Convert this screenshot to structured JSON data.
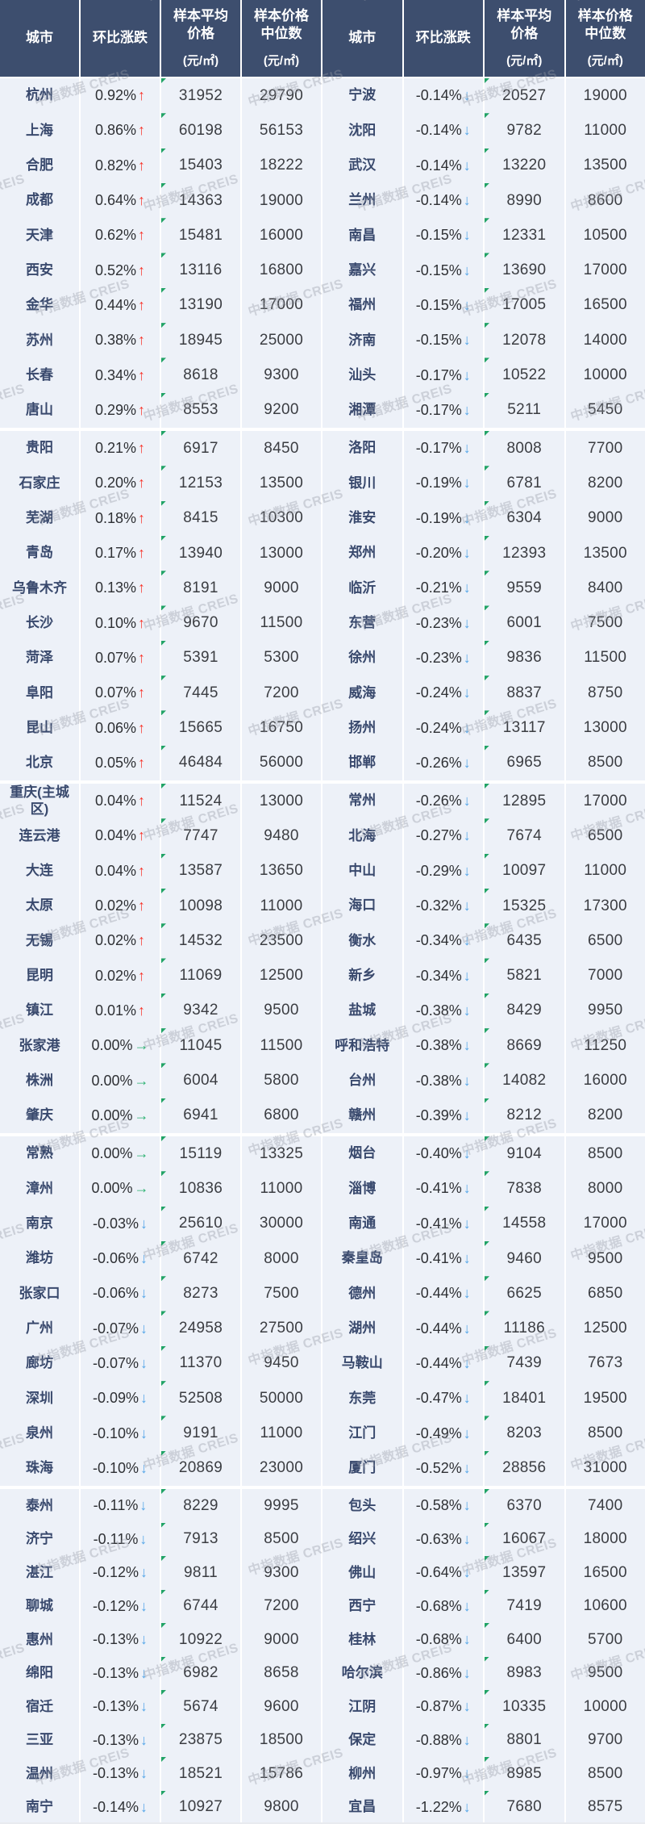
{
  "watermark": {
    "text": "中指数据 CREIS"
  },
  "colors": {
    "header_bg": "#3d4e6e",
    "cell_bg": "#edf1f8",
    "city_text": "#39496d",
    "value_text": "#3b3d42",
    "up_arrow": "#f8382e",
    "down_arrow": "#55a6e8",
    "flat_arrow": "#27b06e",
    "corner_marker": "#21a366"
  },
  "table": {
    "columns": [
      {
        "key": "city",
        "lines": [
          "城市"
        ]
      },
      {
        "key": "change",
        "lines": [
          "环比涨跌"
        ]
      },
      {
        "key": "avg-price",
        "lines": [
          "样本平均",
          "价格"
        ],
        "unit": "(元/㎡)"
      },
      {
        "key": "median-price",
        "lines": [
          "样本价格",
          "中位数"
        ],
        "unit": "(元/㎡)"
      }
    ],
    "arrows": {
      "up": "↑",
      "down": "↓",
      "flat": "→"
    }
  },
  "chart_data": {
    "type": "table",
    "columns": [
      "城市",
      "环比涨跌",
      "样本平均价格(元/㎡)",
      "样本价格中位数(元/㎡)"
    ],
    "left_rows": [
      {
        "city": "杭州",
        "change": "0.92%",
        "dir": "up",
        "avg": "31952",
        "median": "29790"
      },
      {
        "city": "上海",
        "change": "0.86%",
        "dir": "up",
        "avg": "60198",
        "median": "56153"
      },
      {
        "city": "合肥",
        "change": "0.82%",
        "dir": "up",
        "avg": "15403",
        "median": "18222"
      },
      {
        "city": "成都",
        "change": "0.64%",
        "dir": "up",
        "avg": "14363",
        "median": "19000"
      },
      {
        "city": "天津",
        "change": "0.62%",
        "dir": "up",
        "avg": "15481",
        "median": "16000"
      },
      {
        "city": "西安",
        "change": "0.52%",
        "dir": "up",
        "avg": "13116",
        "median": "16800"
      },
      {
        "city": "金华",
        "change": "0.44%",
        "dir": "up",
        "avg": "13190",
        "median": "17000"
      },
      {
        "city": "苏州",
        "change": "0.38%",
        "dir": "up",
        "avg": "18945",
        "median": "25000"
      },
      {
        "city": "长春",
        "change": "0.34%",
        "dir": "up",
        "avg": "8618",
        "median": "9300"
      },
      {
        "city": "唐山",
        "change": "0.29%",
        "dir": "up",
        "avg": "8553",
        "median": "9200"
      },
      {
        "city": "贵阳",
        "change": "0.21%",
        "dir": "up",
        "avg": "6917",
        "median": "8450"
      },
      {
        "city": "石家庄",
        "change": "0.20%",
        "dir": "up",
        "avg": "12153",
        "median": "13500"
      },
      {
        "city": "芜湖",
        "change": "0.18%",
        "dir": "up",
        "avg": "8415",
        "median": "10300"
      },
      {
        "city": "青岛",
        "change": "0.17%",
        "dir": "up",
        "avg": "13940",
        "median": "13000"
      },
      {
        "city": "乌鲁木齐",
        "change": "0.13%",
        "dir": "up",
        "avg": "8191",
        "median": "9000"
      },
      {
        "city": "长沙",
        "change": "0.10%",
        "dir": "up",
        "avg": "9670",
        "median": "11500"
      },
      {
        "city": "菏泽",
        "change": "0.07%",
        "dir": "up",
        "avg": "5391",
        "median": "5300"
      },
      {
        "city": "阜阳",
        "change": "0.07%",
        "dir": "up",
        "avg": "7445",
        "median": "7200"
      },
      {
        "city": "昆山",
        "change": "0.06%",
        "dir": "up",
        "avg": "15665",
        "median": "16750"
      },
      {
        "city": "北京",
        "change": "0.05%",
        "dir": "up",
        "avg": "46484",
        "median": "56000"
      },
      {
        "city": "重庆(主城区)",
        "change": "0.04%",
        "dir": "up",
        "avg": "11524",
        "median": "13000"
      },
      {
        "city": "连云港",
        "change": "0.04%",
        "dir": "up",
        "avg": "7747",
        "median": "9480"
      },
      {
        "city": "大连",
        "change": "0.04%",
        "dir": "up",
        "avg": "13587",
        "median": "13650"
      },
      {
        "city": "太原",
        "change": "0.02%",
        "dir": "up",
        "avg": "10098",
        "median": "11000"
      },
      {
        "city": "无锡",
        "change": "0.02%",
        "dir": "up",
        "avg": "14532",
        "median": "23500"
      },
      {
        "city": "昆明",
        "change": "0.02%",
        "dir": "up",
        "avg": "11069",
        "median": "12500"
      },
      {
        "city": "镇江",
        "change": "0.01%",
        "dir": "up",
        "avg": "9342",
        "median": "9500"
      },
      {
        "city": "张家港",
        "change": "0.00%",
        "dir": "flat",
        "avg": "11045",
        "median": "11500"
      },
      {
        "city": "株洲",
        "change": "0.00%",
        "dir": "flat",
        "avg": "6004",
        "median": "5800"
      },
      {
        "city": "肇庆",
        "change": "0.00%",
        "dir": "flat",
        "avg": "6941",
        "median": "6800"
      },
      {
        "city": "常熟",
        "change": "0.00%",
        "dir": "flat",
        "avg": "15119",
        "median": "13325"
      },
      {
        "city": "漳州",
        "change": "0.00%",
        "dir": "flat",
        "avg": "10836",
        "median": "11000"
      },
      {
        "city": "南京",
        "change": "-0.03%",
        "dir": "down",
        "avg": "25610",
        "median": "30000"
      },
      {
        "city": "潍坊",
        "change": "-0.06%",
        "dir": "down",
        "avg": "6742",
        "median": "8000"
      },
      {
        "city": "张家口",
        "change": "-0.06%",
        "dir": "down",
        "avg": "8273",
        "median": "7500"
      },
      {
        "city": "广州",
        "change": "-0.07%",
        "dir": "down",
        "avg": "24958",
        "median": "27500"
      },
      {
        "city": "廊坊",
        "change": "-0.07%",
        "dir": "down",
        "avg": "11370",
        "median": "9450"
      },
      {
        "city": "深圳",
        "change": "-0.09%",
        "dir": "down",
        "avg": "52508",
        "median": "50000"
      },
      {
        "city": "泉州",
        "change": "-0.10%",
        "dir": "down",
        "avg": "9191",
        "median": "11000"
      },
      {
        "city": "珠海",
        "change": "-0.10%",
        "dir": "down",
        "avg": "20869",
        "median": "23000"
      },
      {
        "city": "泰州",
        "change": "-0.11%",
        "dir": "down",
        "avg": "8229",
        "median": "9995"
      },
      {
        "city": "济宁",
        "change": "-0.11%",
        "dir": "down",
        "avg": "7913",
        "median": "8500"
      },
      {
        "city": "湛江",
        "change": "-0.12%",
        "dir": "down",
        "avg": "9811",
        "median": "9300"
      },
      {
        "city": "聊城",
        "change": "-0.12%",
        "dir": "down",
        "avg": "6744",
        "median": "7200"
      },
      {
        "city": "惠州",
        "change": "-0.13%",
        "dir": "down",
        "avg": "10922",
        "median": "9000"
      },
      {
        "city": "绵阳",
        "change": "-0.13%",
        "dir": "down",
        "avg": "6982",
        "median": "8658"
      },
      {
        "city": "宿迁",
        "change": "-0.13%",
        "dir": "down",
        "avg": "5674",
        "median": "9600"
      },
      {
        "city": "三亚",
        "change": "-0.13%",
        "dir": "down",
        "avg": "23875",
        "median": "18500"
      },
      {
        "city": "温州",
        "change": "-0.13%",
        "dir": "down",
        "avg": "18521",
        "median": "15786"
      },
      {
        "city": "南宁",
        "change": "-0.14%",
        "dir": "down",
        "avg": "10927",
        "median": "9800"
      }
    ],
    "right_rows": [
      {
        "city": "宁波",
        "change": "-0.14%",
        "dir": "down",
        "avg": "20527",
        "median": "19000"
      },
      {
        "city": "沈阳",
        "change": "-0.14%",
        "dir": "down",
        "avg": "9782",
        "median": "11000"
      },
      {
        "city": "武汉",
        "change": "-0.14%",
        "dir": "down",
        "avg": "13220",
        "median": "13500"
      },
      {
        "city": "兰州",
        "change": "-0.14%",
        "dir": "down",
        "avg": "8990",
        "median": "8600"
      },
      {
        "city": "南昌",
        "change": "-0.15%",
        "dir": "down",
        "avg": "12331",
        "median": "10500"
      },
      {
        "city": "嘉兴",
        "change": "-0.15%",
        "dir": "down",
        "avg": "13690",
        "median": "17000"
      },
      {
        "city": "福州",
        "change": "-0.15%",
        "dir": "down",
        "avg": "17005",
        "median": "16500"
      },
      {
        "city": "济南",
        "change": "-0.15%",
        "dir": "down",
        "avg": "12078",
        "median": "14000"
      },
      {
        "city": "汕头",
        "change": "-0.17%",
        "dir": "down",
        "avg": "10522",
        "median": "10000"
      },
      {
        "city": "湘潭",
        "change": "-0.17%",
        "dir": "down",
        "avg": "5211",
        "median": "5450"
      },
      {
        "city": "洛阳",
        "change": "-0.17%",
        "dir": "down",
        "avg": "8008",
        "median": "7700"
      },
      {
        "city": "银川",
        "change": "-0.19%",
        "dir": "down",
        "avg": "6781",
        "median": "8200"
      },
      {
        "city": "淮安",
        "change": "-0.19%",
        "dir": "down",
        "avg": "6304",
        "median": "9000"
      },
      {
        "city": "郑州",
        "change": "-0.20%",
        "dir": "down",
        "avg": "12393",
        "median": "13500"
      },
      {
        "city": "临沂",
        "change": "-0.21%",
        "dir": "down",
        "avg": "9559",
        "median": "8400"
      },
      {
        "city": "东营",
        "change": "-0.23%",
        "dir": "down",
        "avg": "6001",
        "median": "7500"
      },
      {
        "city": "徐州",
        "change": "-0.23%",
        "dir": "down",
        "avg": "9836",
        "median": "11500"
      },
      {
        "city": "威海",
        "change": "-0.24%",
        "dir": "down",
        "avg": "8837",
        "median": "8750"
      },
      {
        "city": "扬州",
        "change": "-0.24%",
        "dir": "down",
        "avg": "13117",
        "median": "13000"
      },
      {
        "city": "邯郸",
        "change": "-0.26%",
        "dir": "down",
        "avg": "6965",
        "median": "8500"
      },
      {
        "city": "常州",
        "change": "-0.26%",
        "dir": "down",
        "avg": "12895",
        "median": "17000"
      },
      {
        "city": "北海",
        "change": "-0.27%",
        "dir": "down",
        "avg": "7674",
        "median": "6500"
      },
      {
        "city": "中山",
        "change": "-0.29%",
        "dir": "down",
        "avg": "10097",
        "median": "11000"
      },
      {
        "city": "海口",
        "change": "-0.32%",
        "dir": "down",
        "avg": "15325",
        "median": "17300"
      },
      {
        "city": "衡水",
        "change": "-0.34%",
        "dir": "down",
        "avg": "6435",
        "median": "6500"
      },
      {
        "city": "新乡",
        "change": "-0.34%",
        "dir": "down",
        "avg": "5821",
        "median": "7000"
      },
      {
        "city": "盐城",
        "change": "-0.38%",
        "dir": "down",
        "avg": "8429",
        "median": "9950"
      },
      {
        "city": "呼和浩特",
        "change": "-0.38%",
        "dir": "down",
        "avg": "8669",
        "median": "11250"
      },
      {
        "city": "台州",
        "change": "-0.38%",
        "dir": "down",
        "avg": "14082",
        "median": "16000"
      },
      {
        "city": "赣州",
        "change": "-0.39%",
        "dir": "down",
        "avg": "8212",
        "median": "8200"
      },
      {
        "city": "烟台",
        "change": "-0.40%",
        "dir": "down",
        "avg": "9104",
        "median": "8500"
      },
      {
        "city": "淄博",
        "change": "-0.41%",
        "dir": "down",
        "avg": "7838",
        "median": "8000"
      },
      {
        "city": "南通",
        "change": "-0.41%",
        "dir": "down",
        "avg": "14558",
        "median": "17000"
      },
      {
        "city": "秦皇岛",
        "change": "-0.41%",
        "dir": "down",
        "avg": "9460",
        "median": "9500"
      },
      {
        "city": "德州",
        "change": "-0.44%",
        "dir": "down",
        "avg": "6625",
        "median": "6850"
      },
      {
        "city": "湖州",
        "change": "-0.44%",
        "dir": "down",
        "avg": "11186",
        "median": "12500"
      },
      {
        "city": "马鞍山",
        "change": "-0.44%",
        "dir": "down",
        "avg": "7439",
        "median": "7673"
      },
      {
        "city": "东莞",
        "change": "-0.47%",
        "dir": "down",
        "avg": "18401",
        "median": "19500"
      },
      {
        "city": "江门",
        "change": "-0.49%",
        "dir": "down",
        "avg": "8203",
        "median": "8500"
      },
      {
        "city": "厦门",
        "change": "-0.52%",
        "dir": "down",
        "avg": "28856",
        "median": "31000"
      },
      {
        "city": "包头",
        "change": "-0.58%",
        "dir": "down",
        "avg": "6370",
        "median": "7400"
      },
      {
        "city": "绍兴",
        "change": "-0.63%",
        "dir": "down",
        "avg": "16067",
        "median": "18000"
      },
      {
        "city": "佛山",
        "change": "-0.64%",
        "dir": "down",
        "avg": "13597",
        "median": "16500"
      },
      {
        "city": "西宁",
        "change": "-0.68%",
        "dir": "down",
        "avg": "7419",
        "median": "10600"
      },
      {
        "city": "桂林",
        "change": "-0.68%",
        "dir": "down",
        "avg": "6400",
        "median": "5700"
      },
      {
        "city": "哈尔滨",
        "change": "-0.86%",
        "dir": "down",
        "avg": "8983",
        "median": "9500"
      },
      {
        "city": "江阴",
        "change": "-0.87%",
        "dir": "down",
        "avg": "10335",
        "median": "10000"
      },
      {
        "city": "保定",
        "change": "-0.88%",
        "dir": "down",
        "avg": "8801",
        "median": "9700"
      },
      {
        "city": "柳州",
        "change": "-0.97%",
        "dir": "down",
        "avg": "8985",
        "median": "8500"
      },
      {
        "city": "宜昌",
        "change": "-1.22%",
        "dir": "down",
        "avg": "7680",
        "median": "8575"
      }
    ]
  }
}
